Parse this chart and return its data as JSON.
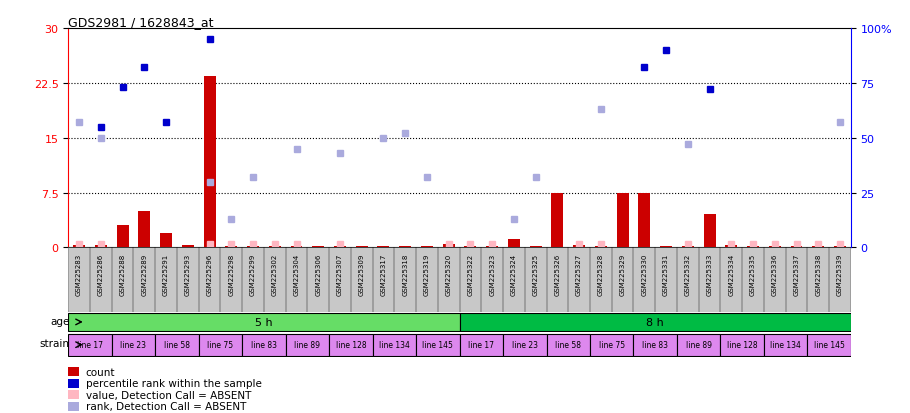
{
  "title": "GDS2981 / 1628843_at",
  "samples": [
    "GSM225283",
    "GSM225286",
    "GSM225288",
    "GSM225289",
    "GSM225291",
    "GSM225293",
    "GSM225296",
    "GSM225298",
    "GSM225299",
    "GSM225302",
    "GSM225304",
    "GSM225306",
    "GSM225307",
    "GSM225309",
    "GSM225317",
    "GSM225318",
    "GSM225319",
    "GSM225320",
    "GSM225322",
    "GSM225323",
    "GSM225324",
    "GSM225325",
    "GSM225326",
    "GSM225327",
    "GSM225328",
    "GSM225329",
    "GSM225330",
    "GSM225331",
    "GSM225332",
    "GSM225333",
    "GSM225334",
    "GSM225335",
    "GSM225336",
    "GSM225337",
    "GSM225338",
    "GSM225339"
  ],
  "count": [
    0.3,
    0.3,
    3.0,
    5.0,
    2.0,
    0.3,
    23.5,
    0.2,
    0.2,
    0.2,
    0.2,
    0.2,
    0.2,
    0.2,
    0.2,
    0.2,
    0.2,
    0.4,
    0.2,
    0.2,
    1.2,
    0.2,
    7.5,
    0.3,
    0.2,
    7.5,
    7.5,
    0.2,
    0.2,
    4.5,
    0.3,
    0.2,
    0.2,
    0.2,
    0.2,
    0.2
  ],
  "percentile_rank_pct": [
    null,
    55.0,
    73.0,
    82.0,
    57.0,
    null,
    95.0,
    null,
    null,
    null,
    null,
    null,
    null,
    null,
    null,
    null,
    null,
    null,
    null,
    null,
    null,
    null,
    null,
    null,
    null,
    null,
    82.0,
    90.0,
    null,
    72.0,
    null,
    null,
    null,
    null,
    null,
    null
  ],
  "absent_rank_pct": [
    57.0,
    50.0,
    null,
    null,
    null,
    null,
    30.0,
    13.0,
    32.0,
    null,
    45.0,
    null,
    43.0,
    null,
    50.0,
    52.0,
    32.0,
    null,
    null,
    null,
    13.0,
    32.0,
    null,
    null,
    63.0,
    null,
    null,
    null,
    47.0,
    null,
    null,
    null,
    null,
    null,
    null,
    57.0
  ],
  "absent_value": [
    0.4,
    0.4,
    null,
    null,
    null,
    null,
    0.4,
    0.4,
    0.4,
    0.4,
    0.4,
    null,
    0.4,
    null,
    null,
    null,
    null,
    0.4,
    0.4,
    0.4,
    null,
    null,
    null,
    0.4,
    0.4,
    null,
    null,
    null,
    0.4,
    null,
    0.4,
    0.4,
    0.4,
    0.4,
    0.4,
    0.4
  ],
  "age_groups": [
    {
      "label": "5 h",
      "start": 0,
      "end": 18,
      "color": "#66DD66"
    },
    {
      "label": "8 h",
      "start": 18,
      "end": 36,
      "color": "#00BB44"
    }
  ],
  "strains": [
    {
      "label": "line 17",
      "start": 0,
      "end": 2
    },
    {
      "label": "line 23",
      "start": 2,
      "end": 4
    },
    {
      "label": "line 58",
      "start": 4,
      "end": 6
    },
    {
      "label": "line 75",
      "start": 6,
      "end": 8
    },
    {
      "label": "line 83",
      "start": 8,
      "end": 10
    },
    {
      "label": "line 89",
      "start": 10,
      "end": 12
    },
    {
      "label": "line 128",
      "start": 12,
      "end": 14
    },
    {
      "label": "line 134",
      "start": 14,
      "end": 16
    },
    {
      "label": "line 145",
      "start": 16,
      "end": 18
    },
    {
      "label": "line 17",
      "start": 18,
      "end": 20
    },
    {
      "label": "line 23",
      "start": 20,
      "end": 22
    },
    {
      "label": "line 58",
      "start": 22,
      "end": 24
    },
    {
      "label": "line 75",
      "start": 24,
      "end": 26
    },
    {
      "label": "line 83",
      "start": 26,
      "end": 28
    },
    {
      "label": "line 89",
      "start": 28,
      "end": 30
    },
    {
      "label": "line 128",
      "start": 30,
      "end": 32
    },
    {
      "label": "line 134",
      "start": 32,
      "end": 34
    },
    {
      "label": "line 145",
      "start": 34,
      "end": 36
    }
  ],
  "ylim_left": [
    0,
    30
  ],
  "ylim_right": [
    0,
    100
  ],
  "yticks_left": [
    0,
    7.5,
    15,
    22.5,
    30
  ],
  "ytick_labels_left": [
    "0",
    "7.5",
    "15",
    "22.5",
    "30"
  ],
  "yticks_right_pct": [
    0,
    25,
    50,
    75,
    100
  ],
  "ytick_labels_right": [
    "0",
    "25",
    "50",
    "75",
    "100%"
  ],
  "bar_color": "#CC0000",
  "rank_color": "#0000CC",
  "absent_val_color": "#FFB6C1",
  "absent_rank_color": "#AAAADD",
  "strain_color": "#DD88EE"
}
